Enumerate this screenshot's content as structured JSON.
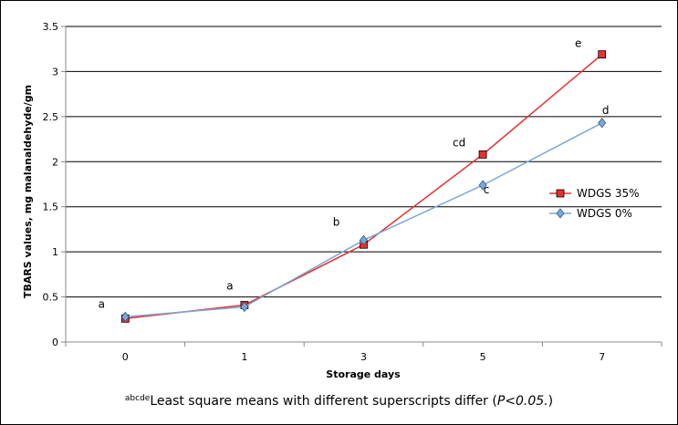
{
  "chart_data": {
    "type": "line",
    "categories": [
      "0",
      "1",
      "3",
      "5",
      "7"
    ],
    "series": [
      {
        "name": "WDGS 35%",
        "values": [
          0.26,
          0.41,
          1.08,
          2.08,
          3.19
        ],
        "color": "#e8302f",
        "marker": "square"
      },
      {
        "name": "WDGS 0%",
        "values": [
          0.28,
          0.39,
          1.13,
          1.74,
          2.43
        ],
        "color": "#7aa7d6",
        "marker": "diamond"
      }
    ],
    "xlabel": "Storage days",
    "ylabel": "TBARS values, mg malanaldehyde/gm",
    "ylim": [
      0,
      3.5
    ],
    "yticks": [
      "0",
      "0.5",
      "1",
      "1.5",
      "2",
      "2.5",
      "3",
      "3.5"
    ],
    "grid": "horizontal",
    "legend_position": "right",
    "annotations": [
      {
        "text": "a",
        "category": "0",
        "value": 0.38
      },
      {
        "text": "a",
        "category": "1",
        "value": 0.58
      },
      {
        "text": "b",
        "category": "3",
        "value": 1.29
      },
      {
        "text": "cd",
        "category": "5",
        "value": 2.17
      },
      {
        "text": "c",
        "category": "5",
        "value": 1.65
      },
      {
        "text": "e",
        "category": "7",
        "value": 3.27
      },
      {
        "text": "d",
        "category": "7",
        "value": 2.53
      }
    ]
  },
  "footnote": {
    "superscript": "abcde",
    "text": "Least square means with different superscripts differ (",
    "pvalue": "P<0.05.",
    "closing": ")"
  },
  "colors": {
    "frame": "#000000",
    "gridline": "#000000",
    "axis": "#888888"
  }
}
